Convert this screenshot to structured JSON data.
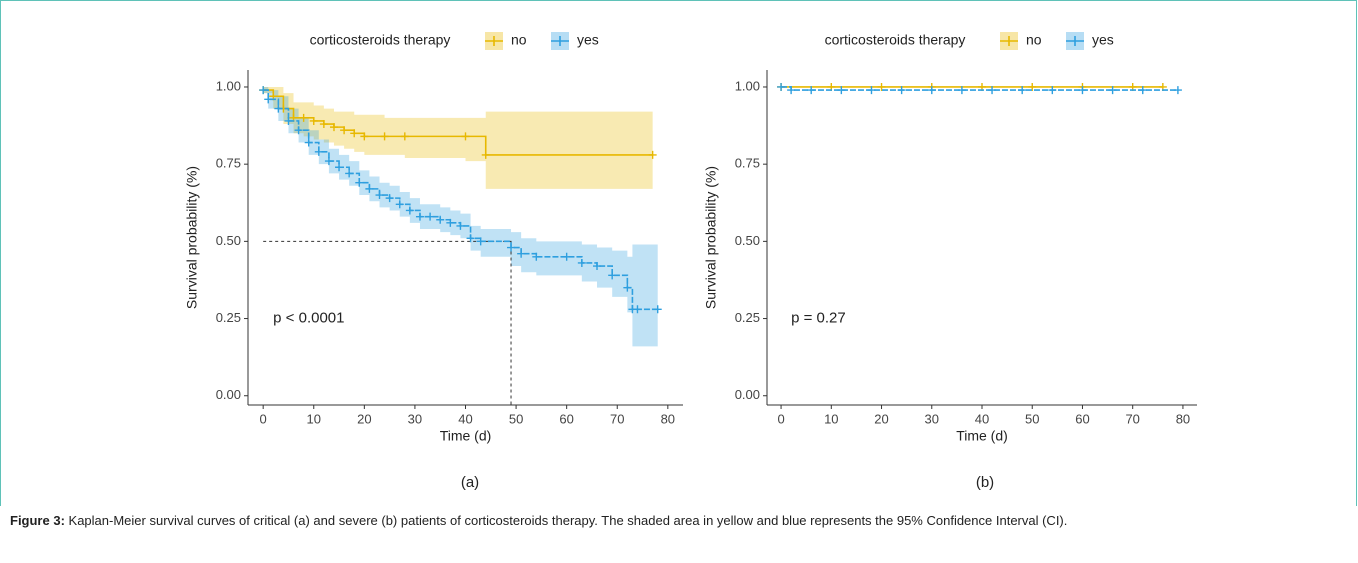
{
  "chart_data": [
    {
      "type": "survival",
      "subtitle": "(a)",
      "legend_title": "corticosteroids therapy",
      "x_label": "Time (d)",
      "y_label": "Survival probability (%)",
      "annotation": "p < 0.0001",
      "xlim": [
        -3,
        83
      ],
      "ylim": [
        -0.03,
        1.055
      ],
      "xticks": [
        0,
        10,
        20,
        30,
        40,
        50,
        60,
        70,
        80
      ],
      "yticks": [
        {
          "value": 0,
          "label": "0.00"
        },
        0.25,
        {
          "value": 0.5,
          "label": "0.50"
        },
        0.75,
        {
          "value": 1,
          "label": "1.00"
        }
      ],
      "median": {
        "x": 49,
        "y": 0.5
      },
      "series": [
        {
          "name": "no",
          "color": "#E7B800",
          "x": [
            0,
            2,
            4,
            6,
            8,
            10,
            12,
            14,
            16,
            18,
            20,
            24,
            28,
            40,
            44,
            77
          ],
          "values": [
            0.99,
            0.97,
            0.93,
            0.9,
            0.9,
            0.89,
            0.88,
            0.87,
            0.86,
            0.85,
            0.84,
            0.84,
            0.84,
            0.84,
            0.78,
            0.78
          ],
          "ci_lower": [
            0.98,
            0.93,
            0.88,
            0.85,
            0.84,
            0.83,
            0.82,
            0.81,
            0.8,
            0.79,
            0.78,
            0.78,
            0.77,
            0.76,
            0.67,
            0.67
          ],
          "ci_upper": [
            1,
            1,
            0.98,
            0.95,
            0.95,
            0.94,
            0.93,
            0.92,
            0.92,
            0.91,
            0.91,
            0.9,
            0.9,
            0.9,
            0.92,
            0.92
          ]
        },
        {
          "name": "yes",
          "color": "#2E9FDF",
          "x": [
            0,
            1,
            3,
            5,
            7,
            9,
            11,
            13,
            15,
            17,
            19,
            21,
            23,
            25,
            27,
            29,
            31,
            33,
            35,
            37,
            39,
            41,
            43,
            49,
            51,
            54,
            60,
            63,
            66,
            69,
            72,
            73,
            74,
            78
          ],
          "values": [
            0.99,
            0.96,
            0.93,
            0.89,
            0.86,
            0.82,
            0.79,
            0.76,
            0.74,
            0.72,
            0.69,
            0.67,
            0.65,
            0.64,
            0.62,
            0.6,
            0.58,
            0.58,
            0.57,
            0.56,
            0.55,
            0.51,
            0.5,
            0.48,
            0.46,
            0.45,
            0.45,
            0.43,
            0.42,
            0.39,
            0.35,
            0.28,
            0.28,
            0.28
          ],
          "ci_lower": [
            0.98,
            0.93,
            0.89,
            0.85,
            0.82,
            0.78,
            0.75,
            0.72,
            0.7,
            0.68,
            0.65,
            0.63,
            0.61,
            0.6,
            0.58,
            0.56,
            0.54,
            0.54,
            0.53,
            0.52,
            0.51,
            0.47,
            0.45,
            0.42,
            0.4,
            0.39,
            0.39,
            0.37,
            0.35,
            0.32,
            0.27,
            0.16,
            0.16,
            0.16
          ],
          "ci_upper": [
            1,
            0.99,
            0.97,
            0.93,
            0.9,
            0.86,
            0.83,
            0.8,
            0.78,
            0.76,
            0.73,
            0.71,
            0.69,
            0.68,
            0.66,
            0.64,
            0.62,
            0.62,
            0.61,
            0.6,
            0.59,
            0.55,
            0.54,
            0.53,
            0.51,
            0.5,
            0.5,
            0.49,
            0.48,
            0.47,
            0.45,
            0.49,
            0.49,
            0.49
          ]
        }
      ]
    },
    {
      "type": "survival",
      "subtitle": "(b)",
      "legend_title": "corticosteroids therapy",
      "x_label": "Time (d)",
      "y_label": "Survival probability (%)",
      "annotation": "p = 0.27",
      "xlim": [
        -2.8,
        82.8
      ],
      "ylim": [
        -0.03,
        1.055
      ],
      "xticks": [
        0,
        10,
        20,
        30,
        40,
        50,
        60,
        70,
        80
      ],
      "yticks": [
        {
          "value": 0,
          "label": "0.00"
        },
        0.25,
        {
          "value": 0.5,
          "label": "0.50"
        },
        0.75,
        {
          "value": 1,
          "label": "1.00"
        }
      ],
      "series": [
        {
          "name": "no",
          "color": "#E7B800",
          "x": [
            0,
            10,
            20,
            30,
            40,
            50,
            60,
            70,
            76
          ],
          "values": [
            1,
            1,
            1,
            1,
            1,
            1,
            1,
            1,
            1
          ]
        },
        {
          "name": "yes",
          "color": "#2E9FDF",
          "x": [
            0,
            2,
            6,
            12,
            18,
            24,
            30,
            36,
            42,
            48,
            54,
            60,
            66,
            72,
            79
          ],
          "values": [
            1,
            0.99,
            0.99,
            0.99,
            0.99,
            0.99,
            0.99,
            0.99,
            0.99,
            0.99,
            0.99,
            0.99,
            0.99,
            0.99,
            0.99
          ]
        }
      ]
    }
  ],
  "caption": {
    "label": "Figure 3:",
    "text": "Kaplan-Meier survival curves of critical (a) and severe (b) patients of corticosteroids therapy. The shaded area in yellow and blue represents the 95% Confidence Interval (CI)."
  }
}
